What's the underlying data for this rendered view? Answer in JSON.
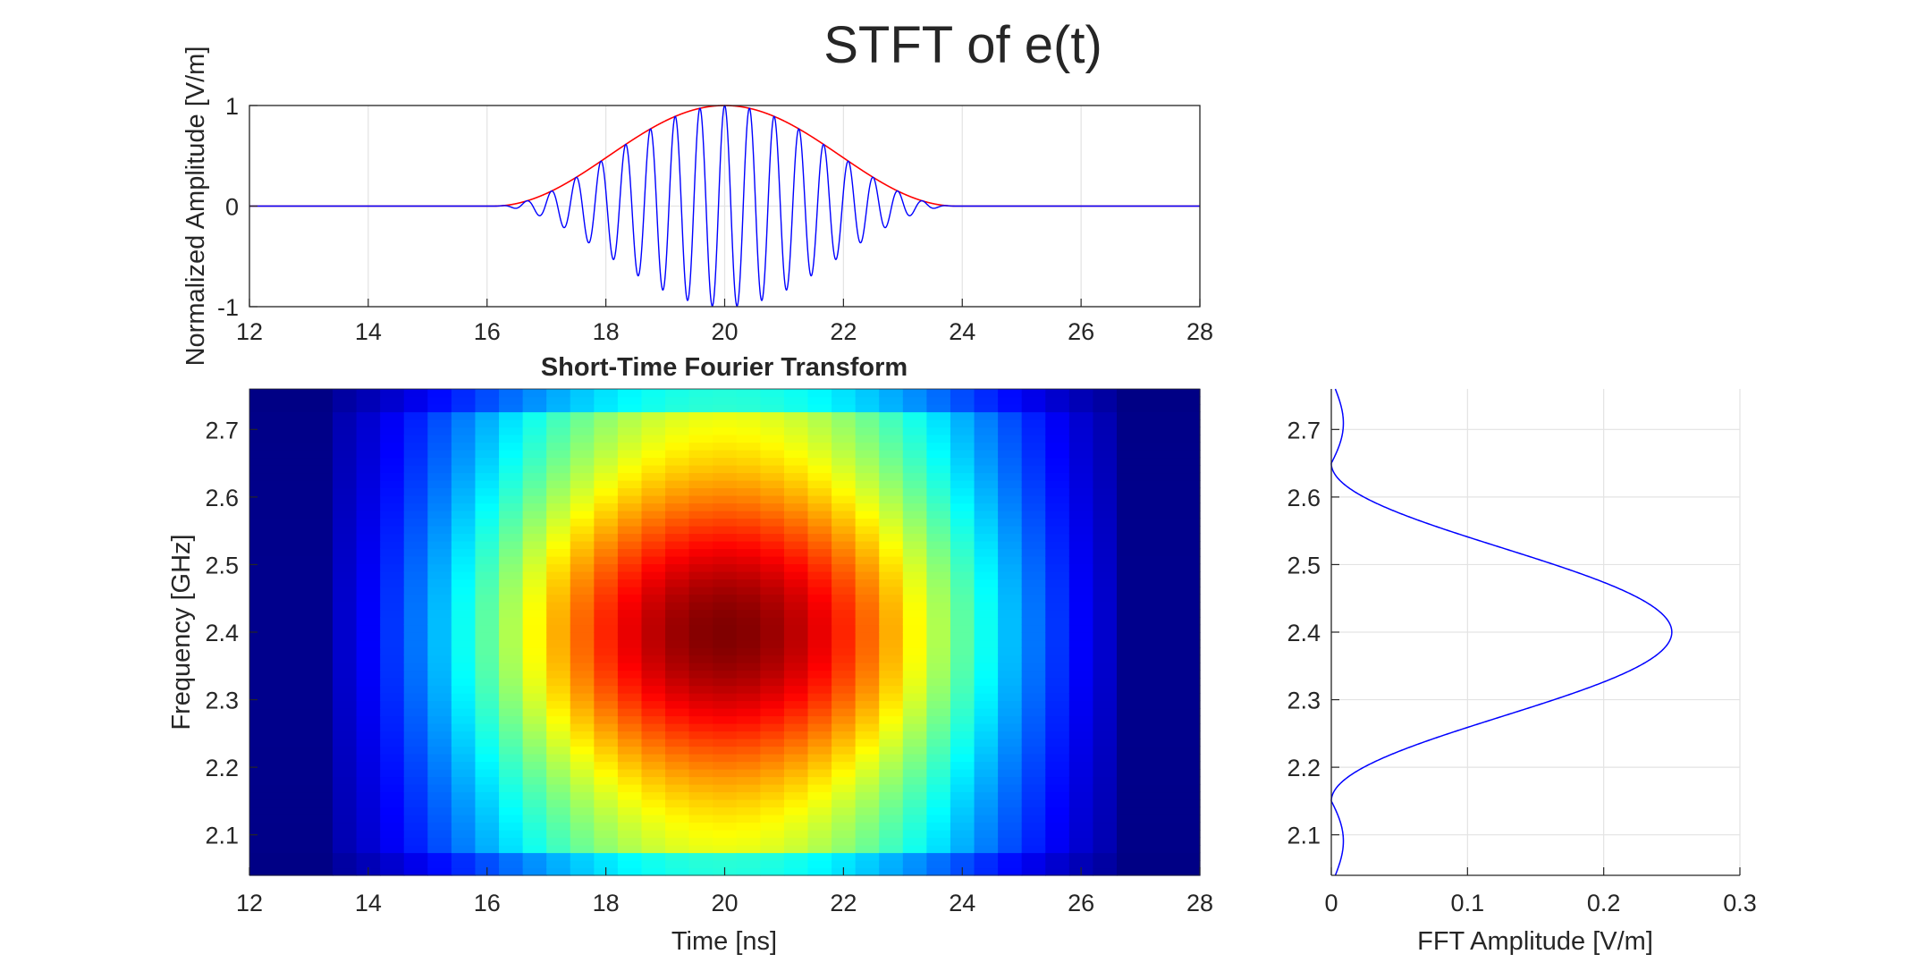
{
  "figure": {
    "title": "STFT of  e(t)"
  },
  "chart_data": [
    {
      "type": "line",
      "title": "",
      "xlabel": "",
      "ylabel": "Normalized Amplitude [V/m]",
      "xlim": [
        12,
        28
      ],
      "ylim": [
        -1,
        1
      ],
      "xticks": [
        "12",
        "14",
        "16",
        "18",
        "20",
        "22",
        "24",
        "26",
        "28"
      ],
      "yticks": [
        "-1",
        "0",
        "1"
      ],
      "grid": true,
      "series": [
        {
          "color": "#0000ff",
          "center": 20,
          "half_width": 3.9,
          "frequency_ghz": 2.4,
          "peak": 1
        },
        {
          "color": "#ff0000",
          "center": 20,
          "half_width": 3.9,
          "peak": 1
        }
      ]
    },
    {
      "type": "heatmap",
      "title": "Short-Time Fourier Transform",
      "xlabel": "Time [ns]",
      "ylabel": "Frequency [GHz]",
      "xlim": [
        12,
        28
      ],
      "ylim": [
        2.04,
        2.76
      ],
      "xticks": [
        "12",
        "14",
        "16",
        "18",
        "20",
        "22",
        "24",
        "26",
        "28"
      ],
      "yticks": [
        "2.1",
        "2.2",
        "2.3",
        "2.4",
        "2.5",
        "2.6",
        "2.7"
      ],
      "colormap": "jet",
      "peak_time": 20,
      "peak_frequency": 2.4,
      "time_bin_edges": [
        12,
        13.4,
        13.8,
        14.2,
        14.6,
        15,
        15.4,
        15.8,
        16.2,
        16.6,
        17,
        17.4,
        17.8,
        18.2,
        18.6,
        19,
        19.4,
        19.8,
        20.2,
        20.6,
        21,
        21.4,
        21.8,
        22.2,
        22.6,
        23,
        23.4,
        23.8,
        24.2,
        24.6,
        25,
        25.4,
        25.8,
        26.2,
        26.6,
        28
      ]
    },
    {
      "type": "line",
      "title": "",
      "xlabel": "FFT Amplitude [V/m]",
      "ylabel": "",
      "xlim": [
        0,
        0.3
      ],
      "ylim": [
        2.04,
        2.76
      ],
      "xticks": [
        "0",
        "0.1",
        "0.2",
        "0.3"
      ],
      "yticks": [
        "2.1",
        "2.2",
        "2.3",
        "2.4",
        "2.5",
        "2.6",
        "2.7"
      ],
      "grid": true,
      "series": [
        {
          "color": "#0000ff",
          "peak_frequency": 2.4,
          "peak_amplitude": 0.25,
          "null_frequencies": [
            2.15,
            2.65
          ],
          "sidelobe_amplitude": 0.01
        }
      ]
    }
  ]
}
